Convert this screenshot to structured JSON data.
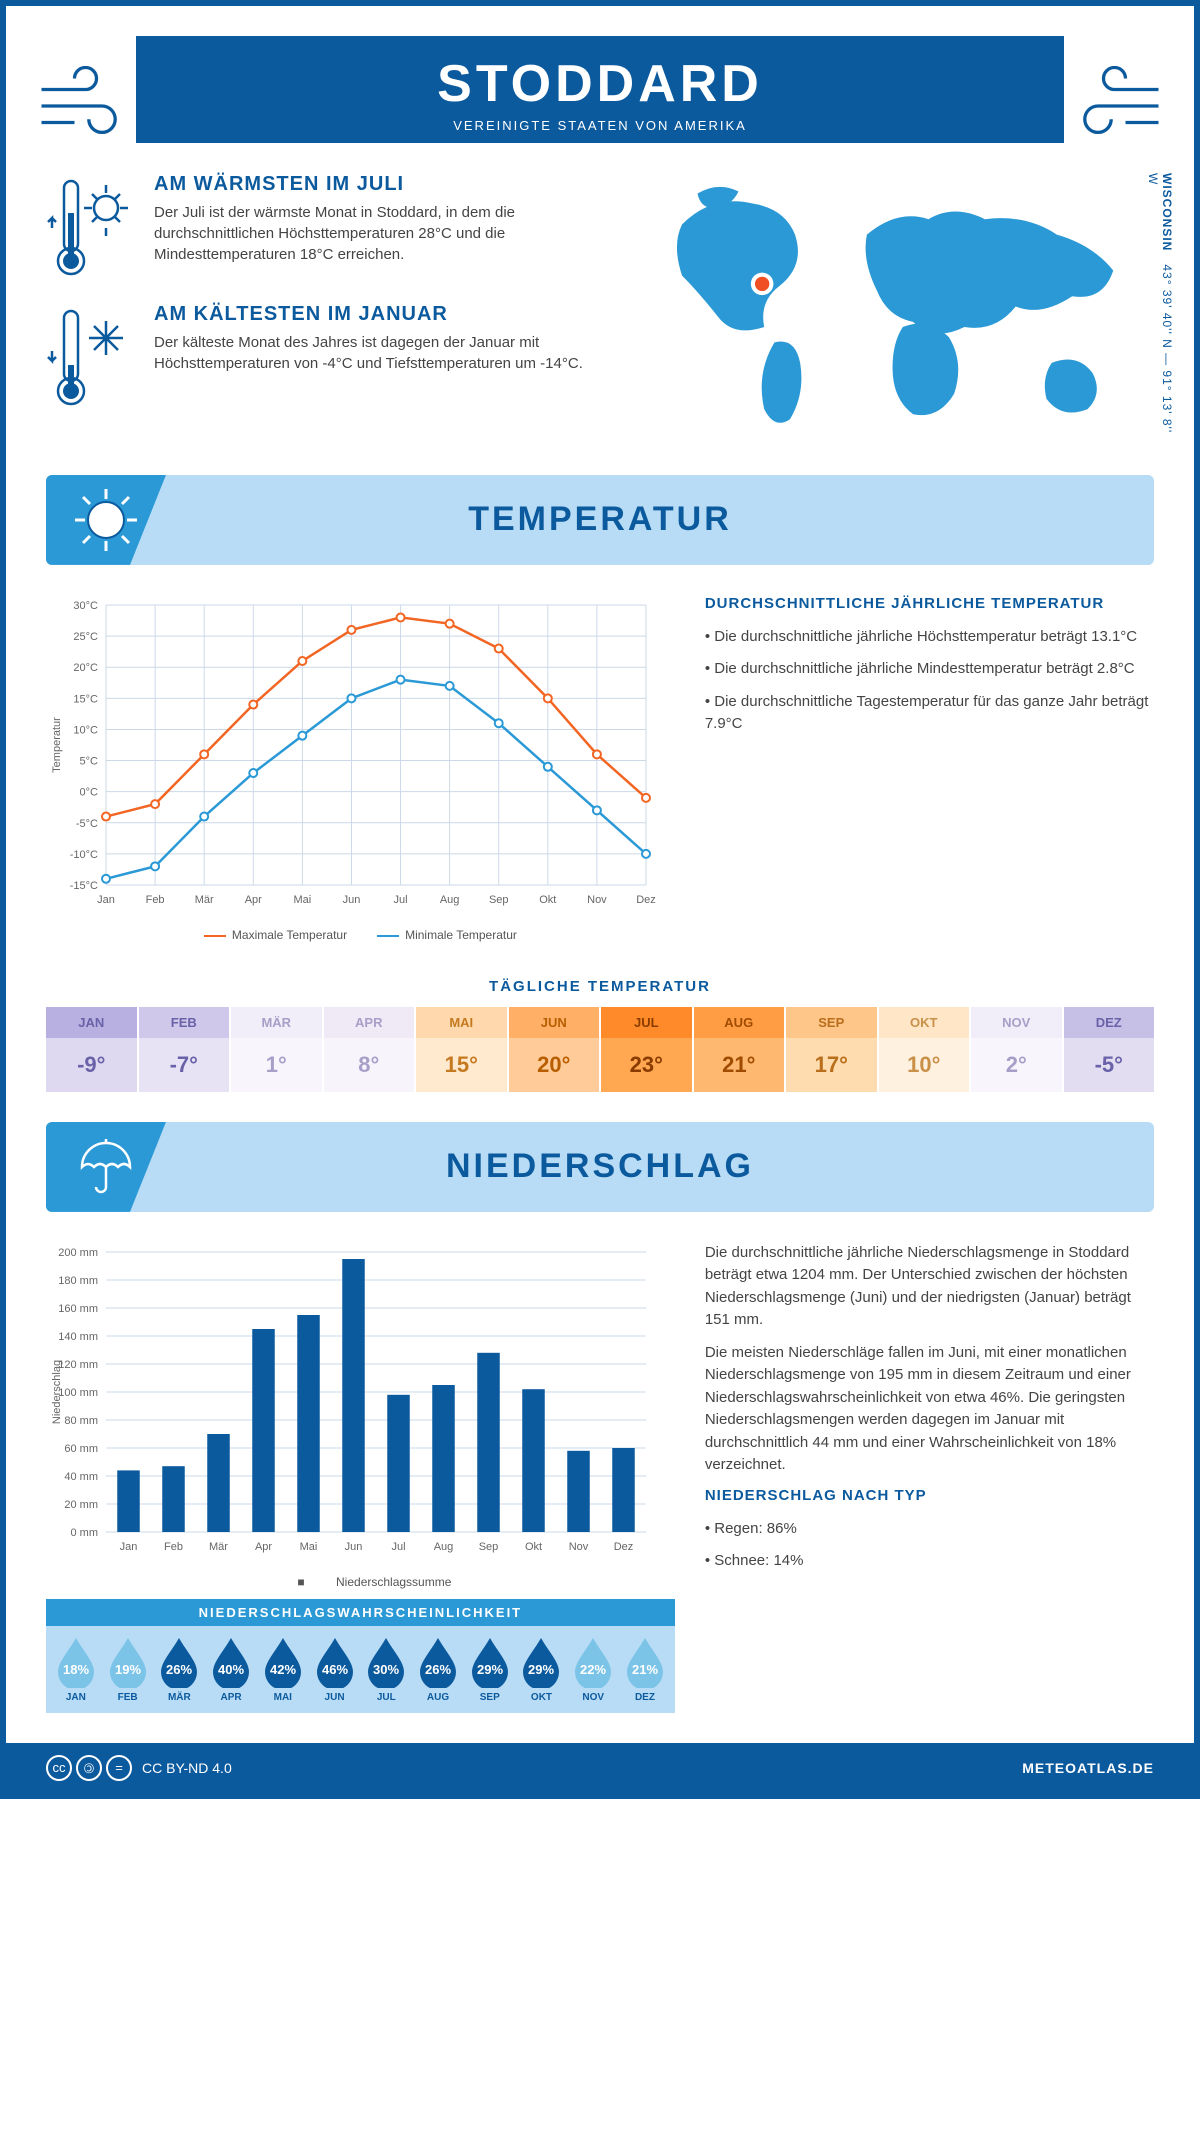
{
  "header": {
    "city": "STODDARD",
    "country": "VEREINIGTE STAATEN VON AMERIKA",
    "state": "WISCONSIN",
    "coords": "43° 39' 40'' N — 91° 13' 8'' W"
  },
  "warm": {
    "title": "AM WÄRMSTEN IM JULI",
    "text": "Der Juli ist der wärmste Monat in Stoddard, in dem die durchschnittlichen Höchsttemperaturen 28°C und die Mindesttemperaturen 18°C erreichen."
  },
  "cold": {
    "title": "AM KÄLTESTEN IM JANUAR",
    "text": "Der kälteste Monat des Jahres ist dagegen der Januar mit Höchsttemperaturen von -4°C und Tiefsttemperaturen um -14°C."
  },
  "temp_section": {
    "heading": "TEMPERATUR",
    "side_title": "DURCHSCHNITTLICHE JÄHRLICHE TEMPERATUR",
    "bullets": [
      "Die durchschnittliche jährliche Höchsttemperatur beträgt 13.1°C",
      "Die durchschnittliche jährliche Mindesttemperatur beträgt 2.8°C",
      "Die durchschnittliche Tagestemperatur für das ganze Jahr beträgt 7.9°C"
    ],
    "legend_max": "Maximale Temperatur",
    "legend_min": "Minimale Temperatur",
    "ylabel": "Temperatur",
    "chart": {
      "months": [
        "Jan",
        "Feb",
        "Mär",
        "Apr",
        "Mai",
        "Jun",
        "Jul",
        "Aug",
        "Sep",
        "Okt",
        "Nov",
        "Dez"
      ],
      "max_values": [
        -4,
        -2,
        6,
        14,
        21,
        26,
        28,
        27,
        23,
        15,
        6,
        -1
      ],
      "min_values": [
        -14,
        -12,
        -4,
        3,
        9,
        15,
        18,
        17,
        11,
        4,
        -3,
        -10
      ],
      "ymin": -15,
      "ymax": 30,
      "ystep": 5,
      "max_color": "#f26522",
      "min_color": "#2a99d6",
      "grid_color": "#ccd9e8"
    }
  },
  "daily": {
    "title": "TÄGLICHE TEMPERATUR",
    "months": [
      "JAN",
      "FEB",
      "MÄR",
      "APR",
      "MAI",
      "JUN",
      "JUL",
      "AUG",
      "SEP",
      "OKT",
      "NOV",
      "DEZ"
    ],
    "values": [
      "-9°",
      "-7°",
      "1°",
      "8°",
      "15°",
      "20°",
      "23°",
      "21°",
      "17°",
      "10°",
      "2°",
      "-5°"
    ],
    "head_colors": [
      "#b8b0e0",
      "#cfc8ea",
      "#f1eef9",
      "#efeaf6",
      "#ffd8ad",
      "#ffb066",
      "#ff8a2a",
      "#ff9d45",
      "#ffc68a",
      "#ffe6c7",
      "#f1eef9",
      "#c6bfe6"
    ],
    "val_colors": [
      "#ded9f0",
      "#e7e3f4",
      "#f8f6fc",
      "#f7f4fb",
      "#ffe9cf",
      "#ffcc99",
      "#ffa851",
      "#ffb870",
      "#ffdbb0",
      "#fff1e0",
      "#f8f6fc",
      "#e2ddf1"
    ],
    "text_colors": [
      "#6a62a8",
      "#6a62a8",
      "#a89fc8",
      "#a89fc8",
      "#c67a1f",
      "#b85e00",
      "#8a3c00",
      "#a04c00",
      "#b86e1a",
      "#c89048",
      "#a89fc8",
      "#6a62a8"
    ]
  },
  "precip_section": {
    "heading": "NIEDERSCHLAG",
    "ylabel": "Niederschlag",
    "legend": "Niederschlagssumme",
    "chart": {
      "months": [
        "Jan",
        "Feb",
        "Mär",
        "Apr",
        "Mai",
        "Jun",
        "Jul",
        "Aug",
        "Sep",
        "Okt",
        "Nov",
        "Dez"
      ],
      "values": [
        44,
        47,
        70,
        145,
        155,
        195,
        98,
        105,
        128,
        102,
        58,
        60
      ],
      "ymax": 200,
      "ystep": 20,
      "bar_color": "#0c5a9e",
      "grid_color": "#ccd9e8"
    },
    "para1": "Die durchschnittliche jährliche Niederschlagsmenge in Stoddard beträgt etwa 1204 mm. Der Unterschied zwischen der höchsten Niederschlagsmenge (Juni) und der niedrigsten (Januar) beträgt 151 mm.",
    "para2": "Die meisten Niederschläge fallen im Juni, mit einer monatlichen Niederschlagsmenge von 195 mm in diesem Zeitraum und einer Niederschlagswahrscheinlichkeit von etwa 46%. Die geringsten Niederschlagsmengen werden dagegen im Januar mit durchschnittlich 44 mm und einer Wahrscheinlichkeit von 18% verzeichnet.",
    "type_title": "NIEDERSCHLAG NACH TYP",
    "type_bullets": [
      "Regen: 86%",
      "Schnee: 14%"
    ]
  },
  "prob": {
    "title": "NIEDERSCHLAGSWAHRSCHEINLICHKEIT",
    "months": [
      "JAN",
      "FEB",
      "MÄR",
      "APR",
      "MAI",
      "JUN",
      "JUL",
      "AUG",
      "SEP",
      "OKT",
      "NOV",
      "DEZ"
    ],
    "values": [
      "18%",
      "19%",
      "26%",
      "40%",
      "42%",
      "46%",
      "30%",
      "26%",
      "29%",
      "29%",
      "22%",
      "21%"
    ],
    "colors": [
      "#7bc4e8",
      "#7bc4e8",
      "#0c5a9e",
      "#0c5a9e",
      "#0c5a9e",
      "#0c5a9e",
      "#0c5a9e",
      "#0c5a9e",
      "#0c5a9e",
      "#0c5a9e",
      "#7bc4e8",
      "#7bc4e8"
    ]
  },
  "footer": {
    "license": "CC BY-ND 4.0",
    "site": "METEOATLAS.DE"
  }
}
